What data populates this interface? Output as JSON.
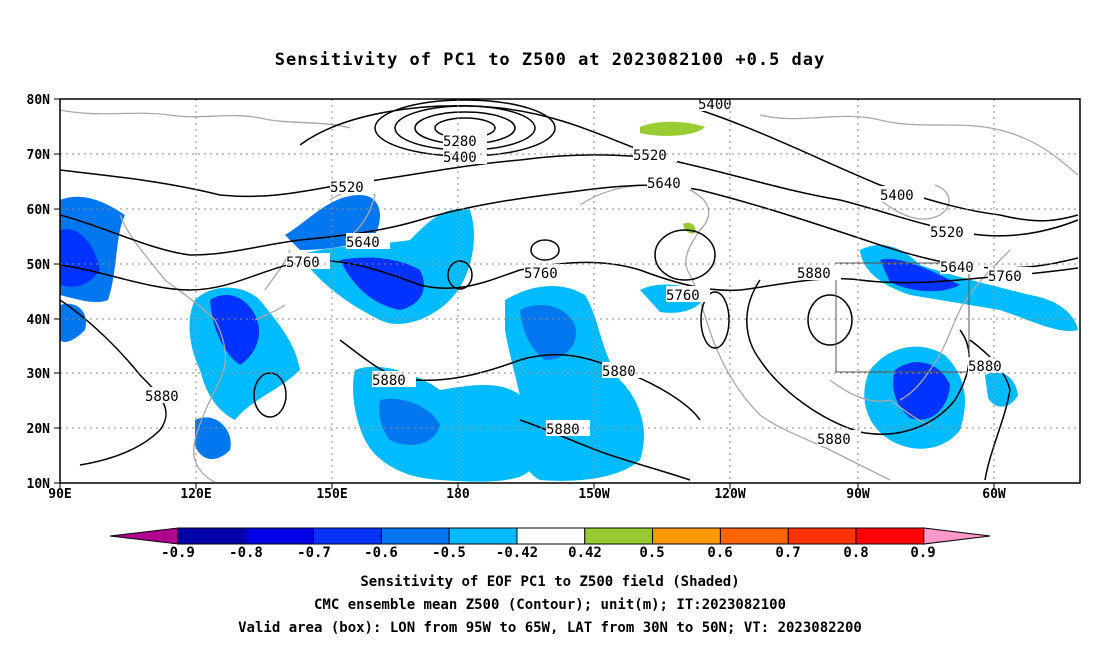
{
  "title": "Sensitivity of PC1 to Z500 at 2023082100 +0.5 day",
  "lat_labels": [
    "80N",
    "70N",
    "60N",
    "50N",
    "40N",
    "30N",
    "20N",
    "10N"
  ],
  "lon_labels": [
    "90E",
    "120E",
    "150E",
    "180",
    "150W",
    "120W",
    "90W",
    "60W"
  ],
  "contour_labels": [
    "5280",
    "5400",
    "5400",
    "5400",
    "5520",
    "5520",
    "5520",
    "5640",
    "5640",
    "5640",
    "5760",
    "5760",
    "5760",
    "5760",
    "5880",
    "5880",
    "5880",
    "5880",
    "5880",
    "5880",
    "5880"
  ],
  "colorbar": {
    "labels": [
      "-0.9",
      "-0.8",
      "-0.7",
      "-0.6",
      "-0.5",
      "-0.42",
      "0.42",
      "0.5",
      "0.6",
      "0.7",
      "0.8",
      "0.9"
    ],
    "colors": [
      "#b0008e",
      "#0000a8",
      "#0000e6",
      "#0033ff",
      "#0077ee",
      "#00bbff",
      "#ffffff",
      "#99cc33",
      "#ff9900",
      "#ff6600",
      "#ff3300",
      "#ff0000",
      "#ff99cc"
    ]
  },
  "valid_box": {
    "lon_from": "95W",
    "lon_to": "65W",
    "lat_from": "30N",
    "lat_to": "50N"
  },
  "footer": {
    "line1": "Sensitivity of EOF PC1 to Z500 field (Shaded)",
    "line2": "CMC ensemble mean Z500 (Contour); unit(m); IT:2023082100",
    "line3": "Valid area (box): LON from 95W to 65W, LAT from 30N to 50N; VT: 2023082200"
  }
}
